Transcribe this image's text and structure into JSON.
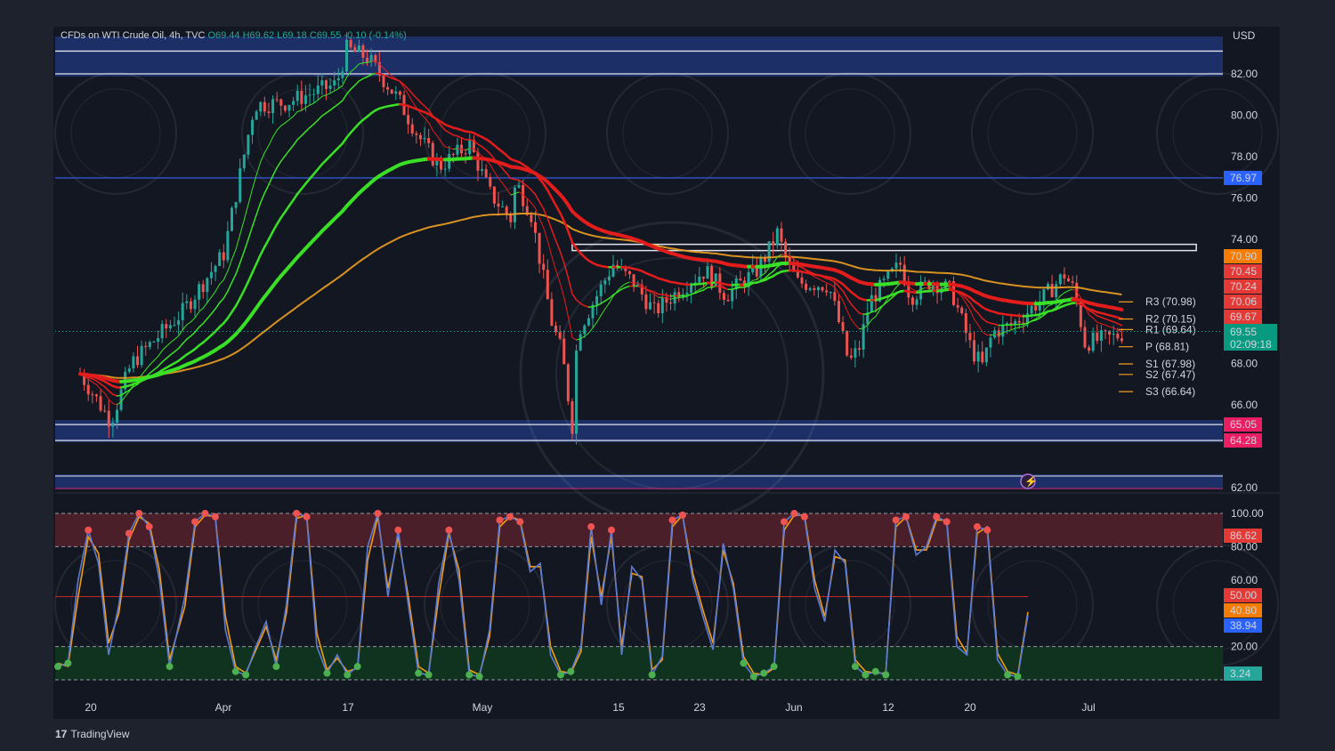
{
  "header": {
    "symbol": "CFDs on WTI Crude Oil, 4h, TVC",
    "open": "O69.44",
    "high": "H69.62",
    "low": "L69.18",
    "close": "C69.55",
    "change": "-0.10 (-0.14%)"
  },
  "currency_label": "USD",
  "brand": {
    "logo": "17",
    "name": "TradingView"
  },
  "colors": {
    "background": "#131722",
    "up_candle": "#26a69a",
    "down_candle": "#ef5350",
    "zone_fill": "#1c2f66",
    "green_ribbon": "#39e026",
    "red_ribbon": "#e31c1c",
    "orange_wave": "#f0a020",
    "k_line": "#5b7bd5",
    "d_line": "#f39c12",
    "overbought_fill": "#4a1f29",
    "oversold_fill": "#10331f"
  },
  "chart_data": [
    {
      "type": "candlestick",
      "title": "CFDs on WTI Crude Oil, 4h, TVC",
      "y_unit": "USD",
      "ylim": [
        62.0,
        83.5
      ],
      "y_ticks": [
        "82.00",
        "80.00",
        "78.00",
        "76.00",
        "74.00",
        "68.00",
        "66.00",
        "62.00"
      ],
      "x_tick_labels": [
        "20",
        "Apr",
        "17",
        "May",
        "15",
        "23",
        "Jun",
        "12",
        "20",
        "Jul"
      ],
      "price_path": [
        [
          "Mar 17",
          67.5
        ],
        [
          "Mar 20",
          65.2
        ],
        [
          "Mar 22",
          68.0
        ],
        [
          "Mar 27",
          70.5
        ],
        [
          "Mar 31",
          73.3
        ],
        [
          "Apr 3",
          80.5
        ],
        [
          "Apr 6",
          80.6
        ],
        [
          "Apr 11",
          81.5
        ],
        [
          "Apr 12",
          83.2
        ],
        [
          "Apr 14",
          82.8
        ],
        [
          "Apr 17",
          80.8
        ],
        [
          "Apr 19",
          79.0
        ],
        [
          "Apr 21",
          77.5
        ],
        [
          "Apr 24",
          78.6
        ],
        [
          "Apr 26",
          76.2
        ],
        [
          "Apr 28",
          75.0
        ],
        [
          "Apr 28b",
          76.8
        ],
        [
          "Apr 30",
          75.2
        ],
        [
          "May 2",
          70.0
        ],
        [
          "May 3",
          68.5
        ],
        [
          "May 4",
          65.0
        ],
        [
          "May 4b",
          69.5
        ],
        [
          "May 8",
          72.8
        ],
        [
          "May 10",
          71.9
        ],
        [
          "May 12",
          70.5
        ],
        [
          "May 15",
          71.8
        ],
        [
          "May 17",
          72.5
        ],
        [
          "May 19",
          71.3
        ],
        [
          "May 22",
          72.5
        ],
        [
          "May 23",
          73.3
        ],
        [
          "May 24",
          74.3
        ],
        [
          "May 25",
          72.8
        ],
        [
          "May 26",
          71.9
        ],
        [
          "May 29",
          71.8
        ],
        [
          "May 30",
          70.0
        ],
        [
          "May 31",
          68.0
        ],
        [
          "Jun 1",
          68.8
        ],
        [
          "Jun 2",
          71.0
        ],
        [
          "Jun 5",
          72.8
        ],
        [
          "Jun 6",
          71.2
        ],
        [
          "Jun 8",
          72.0
        ],
        [
          "Jun 10",
          71.5
        ],
        [
          "Jun 12",
          68.6
        ],
        [
          "Jun 13",
          67.9
        ],
        [
          "Jun 14",
          69.5
        ],
        [
          "Jun 16",
          69.9
        ],
        [
          "Jun 19",
          71.2
        ],
        [
          "Jun 21",
          72.3
        ],
        [
          "Jun 22",
          71.5
        ],
        [
          "Jun 23",
          69.0
        ],
        [
          "Jun 26",
          69.3
        ],
        [
          "Jun 27",
          69.55
        ]
      ],
      "horizontal_levels": [
        {
          "price": 83.1,
          "kind": "zone-top"
        },
        {
          "price": 82.0,
          "kind": "zone-bottom"
        },
        {
          "price": 76.97,
          "label": "76.97",
          "color": "#2962ff"
        },
        {
          "price": 73.63,
          "kind": "rectangle",
          "from": "May 4",
          "to": "Jul 3"
        },
        {
          "price": 65.05,
          "label": "65.05",
          "color": "#e91e63"
        },
        {
          "price": 64.28,
          "label": "64.28",
          "color": "#e91e63"
        }
      ],
      "ma_labels": [
        {
          "value": "70.90",
          "color": "#f57c00"
        },
        {
          "value": "70.45",
          "color": "#e53935"
        },
        {
          "value": "70.24",
          "color": "#e53935"
        },
        {
          "value": "70.06",
          "color": "#e53935"
        },
        {
          "value": "69.67",
          "color": "#e53935"
        }
      ],
      "last_price": "69.55",
      "countdown": "02:09:18",
      "pivots": [
        {
          "label": "R3 (70.98)",
          "value": 70.98
        },
        {
          "label": "R2 (70.15)",
          "value": 70.15
        },
        {
          "label": "R1 (69.64)",
          "value": 69.64
        },
        {
          "label": "P (68.81)",
          "value": 68.81
        },
        {
          "label": "S1 (67.98)",
          "value": 67.98
        },
        {
          "label": "S2 (67.47)",
          "value": 67.47
        },
        {
          "label": "S3 (66.64)",
          "value": 66.64
        }
      ]
    },
    {
      "type": "line",
      "ylim": [
        0,
        100
      ],
      "y_ticks": [
        "100.00",
        "80.00",
        "60.00",
        "20.00"
      ],
      "levels": [
        100,
        80,
        50,
        20,
        0
      ],
      "k_path": [
        0,
        8,
        2,
        10,
        4,
        60,
        6,
        90,
        8,
        70,
        10,
        15,
        12,
        45,
        14,
        88,
        16,
        100,
        18,
        92,
        20,
        60,
        22,
        8,
        25,
        50,
        27,
        95,
        29,
        100,
        31,
        98,
        33,
        30,
        35,
        5,
        37,
        3,
        39,
        20,
        41,
        35,
        43,
        8,
        45,
        45,
        47,
        100,
        49,
        98,
        51,
        20,
        53,
        4,
        55,
        15,
        57,
        3,
        59,
        8,
        61,
        80,
        63,
        100,
        65,
        50,
        67,
        90,
        69,
        45,
        71,
        4,
        73,
        3,
        75,
        58,
        77,
        90,
        79,
        60,
        81,
        3,
        83,
        2,
        85,
        30,
        87,
        96,
        89,
        98,
        91,
        95,
        93,
        65,
        95,
        70,
        97,
        15,
        99,
        3,
        101,
        5,
        103,
        20,
        105,
        92,
        107,
        45,
        109,
        90,
        111,
        15,
        113,
        68,
        115,
        60,
        117,
        3,
        119,
        14,
        121,
        96,
        123,
        99,
        125,
        60,
        127,
        38,
        129,
        18,
        131,
        82,
        133,
        55,
        135,
        10,
        137,
        2,
        139,
        4,
        141,
        8,
        143,
        95,
        145,
        100,
        147,
        98,
        149,
        55,
        151,
        35,
        153,
        78,
        155,
        70,
        157,
        8,
        159,
        3,
        161,
        5,
        163,
        3,
        165,
        96,
        167,
        98,
        169,
        75,
        171,
        80,
        173,
        98,
        175,
        95,
        177,
        20,
        179,
        15,
        181,
        92,
        183,
        90,
        185,
        12,
        187,
        3,
        189,
        2,
        191,
        38.94
      ],
      "d_path": [
        0,
        10,
        2,
        8,
        4,
        50,
        6,
        86,
        8,
        76,
        10,
        22,
        12,
        40,
        14,
        84,
        16,
        98,
        18,
        94,
        20,
        66,
        22,
        12,
        25,
        44,
        27,
        92,
        29,
        99,
        31,
        98,
        33,
        38,
        35,
        8,
        37,
        4,
        39,
        18,
        41,
        32,
        43,
        12,
        45,
        40,
        47,
        97,
        49,
        99,
        51,
        28,
        53,
        6,
        55,
        13,
        57,
        5,
        59,
        7,
        61,
        72,
        63,
        98,
        65,
        55,
        67,
        86,
        69,
        50,
        71,
        8,
        73,
        4,
        75,
        50,
        77,
        88,
        79,
        66,
        81,
        6,
        83,
        3,
        85,
        26,
        87,
        92,
        89,
        98,
        91,
        96,
        93,
        68,
        95,
        68,
        97,
        20,
        99,
        5,
        101,
        4,
        103,
        17,
        105,
        86,
        107,
        50,
        109,
        86,
        111,
        20,
        113,
        64,
        115,
        62,
        117,
        6,
        119,
        12,
        121,
        92,
        123,
        99,
        125,
        64,
        127,
        42,
        129,
        22,
        131,
        78,
        133,
        58,
        135,
        14,
        137,
        4,
        139,
        3,
        141,
        7,
        143,
        90,
        145,
        99,
        147,
        99,
        149,
        60,
        151,
        38,
        153,
        74,
        155,
        72,
        157,
        12,
        159,
        5,
        161,
        4,
        163,
        4,
        165,
        92,
        167,
        98,
        169,
        78,
        171,
        78,
        173,
        96,
        175,
        96,
        177,
        26,
        179,
        16,
        181,
        88,
        183,
        92,
        185,
        16,
        187,
        5,
        189,
        3,
        191,
        40.8
      ],
      "labels": [
        {
          "value": "86.62",
          "color": "#e53935"
        },
        {
          "value": "50.00",
          "color": "#e53935"
        },
        {
          "value": "40.80",
          "color": "#f57c00"
        },
        {
          "value": "38.94",
          "color": "#2962ff"
        },
        {
          "value": "3.24",
          "color": "#26a69a"
        }
      ]
    }
  ]
}
